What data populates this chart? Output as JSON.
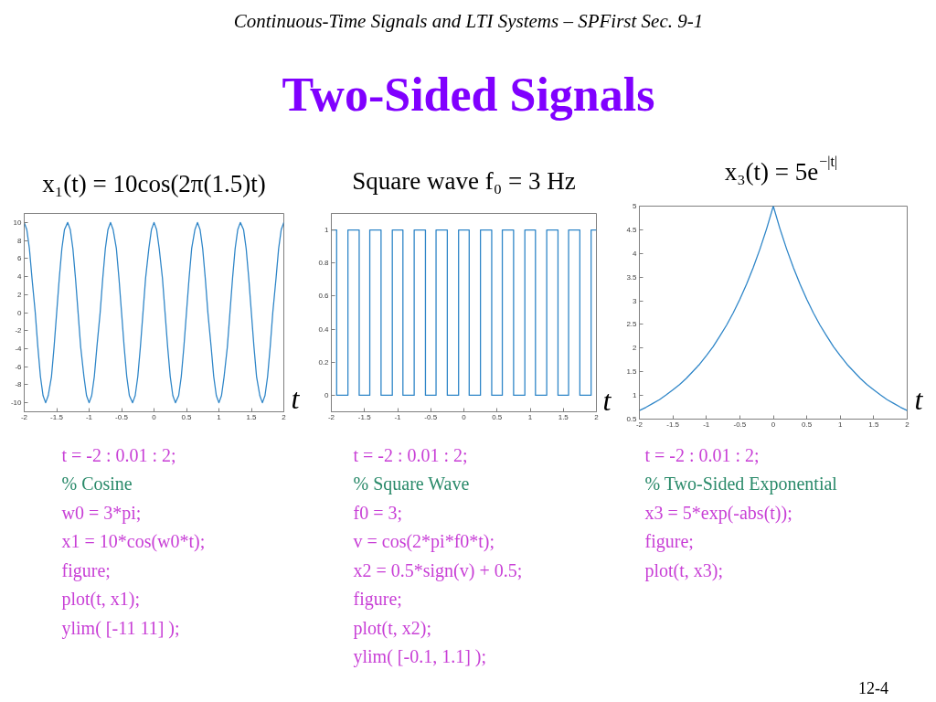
{
  "chart_data": [
    {
      "type": "other",
      "title": "Two-Sided Signals",
      "subtitle": "Continuous-Time Signals and LTI Systems – SPFirst Sec. 9-1",
      "annotations": [
        "12-4"
      ]
    },
    {
      "type": "line",
      "title": "x₁(t) = 10cos(2π(1.5)t)",
      "xlabel": "t",
      "color": "#2f86c8",
      "x": [
        -2,
        -1.96,
        -1.92,
        -1.88,
        -1.83,
        -1.79,
        -1.75,
        -1.71,
        -1.67,
        -1.63,
        -1.58,
        -1.54,
        -1.5,
        -1.46,
        -1.42,
        -1.38,
        -1.33,
        -1.29,
        -1.25,
        -1.21,
        -1.17,
        -1.13,
        -1.08,
        -1.04,
        -1,
        -0.96,
        -0.92,
        -0.88,
        -0.83,
        -0.79,
        -0.75,
        -0.71,
        -0.67,
        -0.63,
        -0.58,
        -0.54,
        -0.5,
        -0.46,
        -0.42,
        -0.38,
        -0.33,
        -0.29,
        -0.25,
        -0.21,
        -0.17,
        -0.13,
        -0.08,
        -0.04,
        0,
        0.04,
        0.08,
        0.13,
        0.17,
        0.21,
        0.25,
        0.29,
        0.33,
        0.38,
        0.42,
        0.46,
        0.5,
        0.54,
        0.58,
        0.63,
        0.67,
        0.71,
        0.75,
        0.79,
        0.83,
        0.88,
        0.92,
        0.96,
        1,
        1.04,
        1.08,
        1.13,
        1.17,
        1.21,
        1.25,
        1.29,
        1.33,
        1.38,
        1.42,
        1.46,
        1.5,
        1.54,
        1.58,
        1.63,
        1.67,
        1.71,
        1.75,
        1.79,
        1.83,
        1.88,
        1.92,
        1.96,
        2
      ],
      "values": [
        10,
        9.2,
        7.1,
        3.8,
        0,
        -3.8,
        -7.1,
        -9.2,
        -10,
        -9.2,
        -7.1,
        -3.8,
        0,
        3.8,
        7.1,
        9.2,
        10,
        9.2,
        7.1,
        3.8,
        0,
        -3.8,
        -7.1,
        -9.2,
        -10,
        -9.2,
        -7.1,
        -3.8,
        0,
        3.8,
        7.1,
        9.2,
        10,
        9.2,
        7.1,
        3.8,
        0,
        -3.8,
        -7.1,
        -9.2,
        -10,
        -9.2,
        -7.1,
        -3.8,
        0,
        3.8,
        7.1,
        9.2,
        10,
        9.2,
        7.1,
        3.8,
        0,
        -3.8,
        -7.1,
        -9.2,
        -10,
        -9.2,
        -7.1,
        -3.8,
        0,
        3.8,
        7.1,
        9.2,
        10,
        9.2,
        7.1,
        3.8,
        0,
        -3.8,
        -7.1,
        -9.2,
        -10,
        -9.2,
        -7.1,
        -3.8,
        0,
        3.8,
        7.1,
        9.2,
        10,
        9.2,
        7.1,
        3.8,
        0,
        -3.8,
        -7.1,
        -9.2,
        -10,
        -9.2,
        -7.1,
        -3.8,
        0,
        3.8,
        7.1,
        9.2,
        10
      ],
      "xlim": [
        -2,
        2
      ],
      "xticks": [
        -2,
        -1.5,
        -1,
        -0.5,
        0,
        0.5,
        1,
        1.5,
        2
      ],
      "ylim": [
        -11,
        11
      ],
      "yticks": [
        -10,
        -8,
        -6,
        -4,
        -2,
        0,
        2,
        4,
        6,
        8,
        10
      ],
      "annotations": [
        "t = -2 : 0.01 : 2;",
        "% Cosine",
        "w0 = 3*pi;",
        "x1 = 10*cos(w0*t);",
        "figure;",
        "plot(t, x1);",
        "ylim( [-11 11] );"
      ]
    },
    {
      "type": "step",
      "title": "Square wave f₀ = 3 Hz",
      "xlabel": "t",
      "color": "#2f86c8",
      "x": [
        -2,
        -1.92,
        -1.75,
        -1.58,
        -1.42,
        -1.25,
        -1.08,
        -0.92,
        -0.75,
        -0.58,
        -0.42,
        -0.25,
        -0.08,
        0.08,
        0.25,
        0.42,
        0.58,
        0.75,
        0.92,
        1.08,
        1.25,
        1.42,
        1.58,
        1.75,
        1.92,
        2
      ],
      "values": [
        1,
        0,
        1,
        0,
        1,
        0,
        1,
        0,
        1,
        0,
        1,
        0,
        1,
        0,
        1,
        0,
        1,
        0,
        1,
        0,
        1,
        0,
        1,
        0,
        1,
        1
      ],
      "xlim": [
        -2,
        2
      ],
      "xticks": [
        -2,
        -1.5,
        -1,
        -0.5,
        0,
        0.5,
        1,
        1.5,
        2
      ],
      "ylim": [
        -0.1,
        1.1
      ],
      "yticks": [
        0,
        0.2,
        0.4,
        0.6,
        0.8,
        1
      ],
      "annotations": [
        "t = -2 : 0.01 : 2;",
        "% Square Wave",
        "f0 = 3;",
        "v = cos(2*pi*f0*t);",
        "x2 = 0.5*sign(v) + 0.5;",
        "figure;",
        "plot(t, x2);",
        "ylim( [-0.1, 1.1] );"
      ]
    },
    {
      "type": "line",
      "title": "x₃(t) = 5e$^{−|t|}$",
      "xlabel": "t",
      "color": "#2f86c8",
      "x": [
        -2,
        -1.9,
        -1.8,
        -1.7,
        -1.6,
        -1.5,
        -1.4,
        -1.3,
        -1.2,
        -1.1,
        -1,
        -0.9,
        -0.8,
        -0.7,
        -0.6,
        -0.5,
        -0.4,
        -0.3,
        -0.2,
        -0.1,
        0,
        0.1,
        0.2,
        0.3,
        0.4,
        0.5,
        0.6,
        0.7,
        0.8,
        0.9,
        1,
        1.1,
        1.2,
        1.3,
        1.4,
        1.5,
        1.6,
        1.7,
        1.8,
        1.9,
        2
      ],
      "values": [
        0.68,
        0.75,
        0.83,
        0.91,
        1.01,
        1.12,
        1.23,
        1.36,
        1.51,
        1.66,
        1.84,
        2.03,
        2.25,
        2.48,
        2.74,
        3.03,
        3.35,
        3.7,
        4.09,
        4.52,
        5,
        4.52,
        4.09,
        3.7,
        3.35,
        3.03,
        2.74,
        2.48,
        2.25,
        2.03,
        1.84,
        1.66,
        1.51,
        1.36,
        1.23,
        1.12,
        1.01,
        0.91,
        0.83,
        0.75,
        0.68
      ],
      "xlim": [
        -2,
        2
      ],
      "xticks": [
        -2,
        -1.5,
        -1,
        -0.5,
        0,
        0.5,
        1,
        1.5,
        2
      ],
      "ylim": [
        0.5,
        5
      ],
      "yticks": [
        0.5,
        1,
        1.5,
        2,
        2.5,
        3,
        3.5,
        4,
        4.5,
        5
      ],
      "annotations": [
        "t = -2 : 0.01 : 2;",
        "% Two-Sided Exponential",
        "x3 = 5*exp(-abs(t));",
        "figure;",
        "plot(t, x3);"
      ]
    }
  ]
}
